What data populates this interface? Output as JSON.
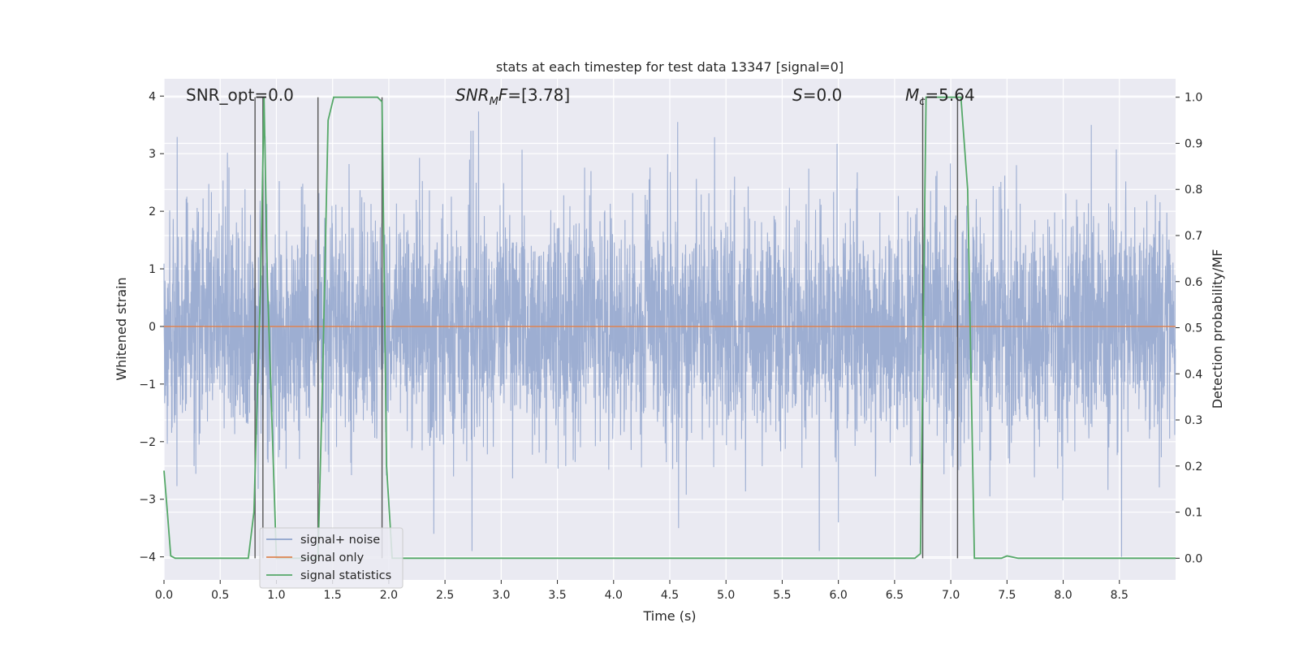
{
  "chart_data": {
    "type": "line",
    "title": "stats at each timestep for test data 13347 [signal=0]",
    "xlabel": "Time (s)",
    "ylabel": "Whitened strain",
    "y2label": "Detection probability/MF",
    "xlim": [
      0,
      9
    ],
    "ylim": [
      -4.4,
      4.3
    ],
    "y2lim": [
      -0.047,
      1.04
    ],
    "xticks": [
      "0.0",
      "0.5",
      "1.0",
      "1.5",
      "2.0",
      "2.5",
      "3.0",
      "3.5",
      "4.0",
      "4.5",
      "5.0",
      "5.5",
      "6.0",
      "6.5",
      "7.0",
      "7.5",
      "8.0",
      "8.5"
    ],
    "yticks": [
      "−4",
      "−3",
      "−2",
      "−1",
      "0",
      "1",
      "2",
      "3",
      "4"
    ],
    "y2ticks": [
      "0.0",
      "0.1",
      "0.2",
      "0.3",
      "0.4",
      "0.5",
      "0.6",
      "0.7",
      "0.8",
      "0.9",
      "1.0"
    ],
    "grid": true,
    "legend_placement": "lower-left",
    "annotations": [
      {
        "text": "SNR_opt=0.0",
        "x": 0.19
      },
      {
        "text": "SNR_MF=[3.78]",
        "x": 2.6
      },
      {
        "text": "S=0.0",
        "x": 5.6
      },
      {
        "text": "M_c=5.64",
        "x": 6.6
      }
    ],
    "series": [
      {
        "name": "signal+ noise",
        "color": "#8FA3CC",
        "axis": "left",
        "sample_rate": 512,
        "noise_std": 1.0,
        "envelope_note": "dense whitened noise, roughly within ±4",
        "sample_peaks": [
          {
            "x": 0.9,
            "y": 3.3
          },
          {
            "x": 2.75,
            "y": 3.4
          },
          {
            "x": 4.57,
            "y": 3.55
          },
          {
            "x": 8.25,
            "y": 3.5
          },
          {
            "x": 2.74,
            "y": -3.9
          },
          {
            "x": 5.83,
            "y": -3.9
          },
          {
            "x": 8.52,
            "y": -4.0
          },
          {
            "x": 6.0,
            "y": -3.4
          },
          {
            "x": 2.4,
            "y": -3.6
          }
        ]
      },
      {
        "name": "signal only",
        "color": "#DD8452",
        "axis": "left",
        "x": [
          0,
          9
        ],
        "y": [
          0,
          0
        ]
      },
      {
        "name": "signal statistics",
        "color": "#55A868",
        "axis": "right",
        "x": [
          0.0,
          0.03,
          0.06,
          0.1,
          0.75,
          0.8,
          0.86,
          0.89,
          0.92,
          1.0,
          1.06,
          1.37,
          1.41,
          1.46,
          1.51,
          1.9,
          1.94,
          1.98,
          2.03,
          2.07,
          6.68,
          6.73,
          6.78,
          7.03,
          7.09,
          7.15,
          7.21,
          7.45,
          7.5,
          7.6,
          9.0
        ],
        "y": [
          0.19,
          0.1,
          0.005,
          0.0,
          0.0,
          0.1,
          0.6,
          1.0,
          0.6,
          0.0,
          0.0,
          0.0,
          0.38,
          0.95,
          1.0,
          1.0,
          0.99,
          0.2,
          0.0,
          0.0,
          0.0,
          0.01,
          1.0,
          1.0,
          1.0,
          0.8,
          0.0,
          0.0,
          0.005,
          0.0,
          0.0
        ]
      }
    ],
    "vertical_markers": [
      {
        "x": 0.81,
        "color": "#555555"
      },
      {
        "x": 0.88,
        "color": "#555555"
      },
      {
        "x": 1.37,
        "color": "#555555"
      },
      {
        "x": 1.94,
        "color": "#555555"
      },
      {
        "x": 6.75,
        "color": "#555555"
      },
      {
        "x": 7.06,
        "color": "#555555"
      }
    ],
    "colors": {
      "plot_background": "#EAEAF2",
      "grid": "#FFFFFF"
    }
  }
}
